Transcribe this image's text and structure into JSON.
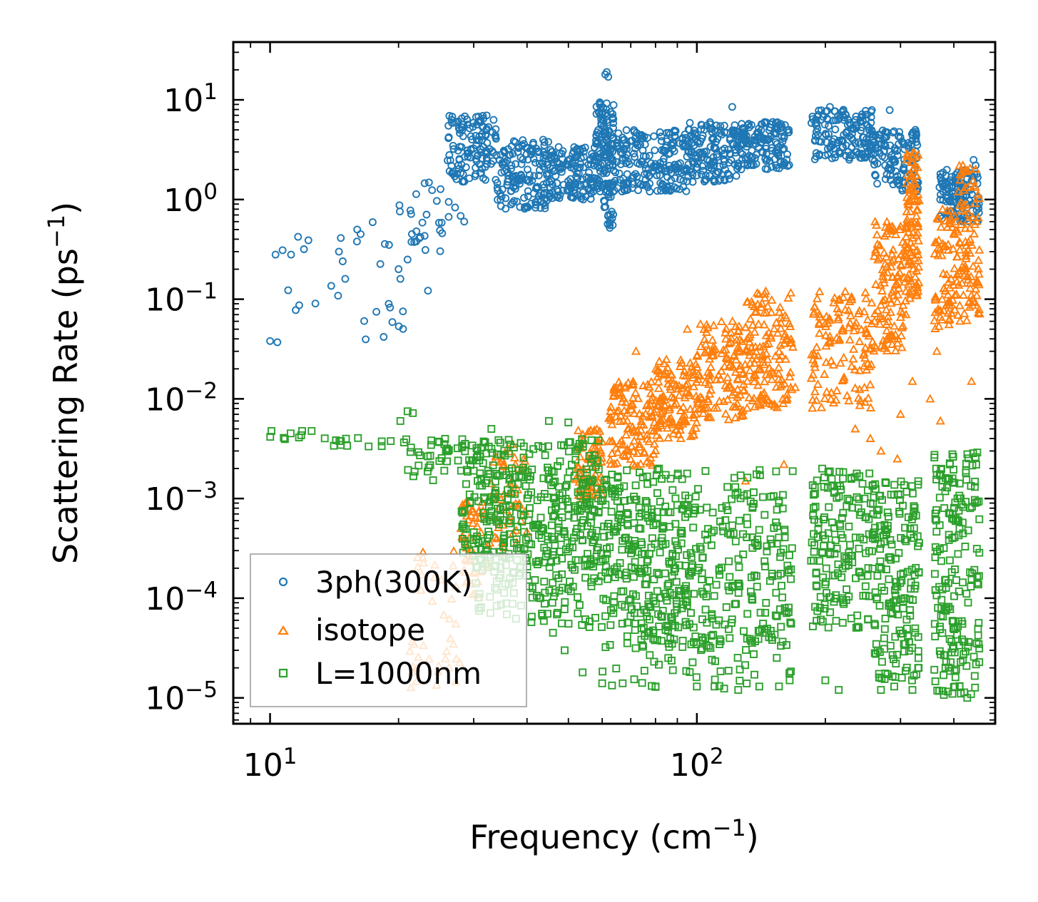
{
  "chart_data": {
    "type": "scatter",
    "title": "",
    "xlabel": {
      "main": "Frequency (cm",
      "sup": "−1",
      "close": ")"
    },
    "ylabel": {
      "main": "Scattering Rate (ps",
      "sup": "−1",
      "close": ")"
    },
    "xscale": "log",
    "yscale": "log",
    "xlim": [
      8.2,
      500
    ],
    "ylim": [
      5.5e-06,
      38
    ],
    "xticks": [
      {
        "value": 10,
        "base": "10",
        "exp": "1"
      },
      {
        "value": 100,
        "base": "10",
        "exp": "2"
      }
    ],
    "yticks": [
      {
        "value": 1e-05,
        "base": "10",
        "exp": "−5"
      },
      {
        "value": 0.0001,
        "base": "10",
        "exp": "−4"
      },
      {
        "value": 0.001,
        "base": "10",
        "exp": "−3"
      },
      {
        "value": 0.01,
        "base": "10",
        "exp": "−2"
      },
      {
        "value": 0.1,
        "base": "10",
        "exp": "−1"
      },
      {
        "value": 1,
        "base": "10",
        "exp": "0"
      },
      {
        "value": 10,
        "base": "10",
        "exp": "1"
      }
    ],
    "legend": {
      "position": "lower-left"
    },
    "series": [
      {
        "name": "3ph(300K)",
        "color": "#1f77b4",
        "marker": "circle",
        "bands": [
          [
            10.0,
            24.0,
            0.03,
            0.6,
            25
          ],
          [
            20.0,
            28.0,
            0.3,
            1.6,
            25
          ],
          [
            26.0,
            34.0,
            1.5,
            7.0,
            130
          ],
          [
            34.0,
            45.0,
            0.8,
            4.0,
            150
          ],
          [
            45.0,
            58.0,
            1.0,
            3.5,
            140
          ],
          [
            58.0,
            64.0,
            1.2,
            10.0,
            120
          ],
          [
            60.0,
            64.0,
            0.55,
            1.5,
            25
          ],
          [
            64.0,
            95.0,
            1.2,
            5.0,
            200
          ],
          [
            95.0,
            125.0,
            1.5,
            6.0,
            150
          ],
          [
            125.0,
            165.0,
            2.0,
            6.0,
            150
          ],
          [
            185.0,
            260.0,
            2.5,
            8.0,
            160
          ],
          [
            260.0,
            330.0,
            1.2,
            5.0,
            120
          ],
          [
            370.0,
            460.0,
            0.6,
            2.0,
            130
          ]
        ],
        "points": [
          [
            10.0,
            0.038
          ],
          [
            10.4,
            0.037
          ],
          [
            10.3,
            0.28
          ],
          [
            10.7,
            0.31
          ],
          [
            11.2,
            0.28
          ],
          [
            11.7,
            0.087
          ],
          [
            12.3,
            0.39
          ],
          [
            14.5,
            0.3
          ],
          [
            14.8,
            0.24
          ],
          [
            15.0,
            0.16
          ],
          [
            16.0,
            0.5
          ],
          [
            16.3,
            0.45
          ],
          [
            19.0,
            0.35
          ],
          [
            20.0,
            0.2
          ],
          [
            20.2,
            0.16
          ],
          [
            21.0,
            0.25
          ],
          [
            21.5,
            0.45
          ],
          [
            22.0,
            0.38
          ],
          [
            22.5,
            0.42
          ],
          [
            28.5,
            0.6
          ],
          [
            61.0,
            18.0
          ],
          [
            61.5,
            19.0
          ],
          [
            62.0,
            17.0
          ],
          [
            62.5,
            0.52
          ],
          [
            121.0,
            8.5
          ],
          [
            205.0,
            8.5
          ],
          [
            283.0,
            7.9
          ],
          [
            325.0,
            5.0
          ],
          [
            445.0,
            2.5
          ],
          [
            450.0,
            2.2
          ]
        ]
      },
      {
        "name": "isotope",
        "color": "#ff7f0e",
        "marker": "triangle",
        "bands": [
          [
            21.0,
            28.0,
            1.2e-05,
            0.0003,
            40
          ],
          [
            28.0,
            33.0,
            0.0001,
            0.001,
            50
          ],
          [
            33.0,
            40.0,
            0.0003,
            0.003,
            50
          ],
          [
            52.0,
            60.0,
            0.001,
            0.005,
            70
          ],
          [
            62.0,
            80.0,
            0.002,
            0.015,
            120
          ],
          [
            80.0,
            100.0,
            0.004,
            0.025,
            120
          ],
          [
            100.0,
            130.0,
            0.006,
            0.06,
            130
          ],
          [
            130.0,
            168.0,
            0.008,
            0.12,
            140
          ],
          [
            185.0,
            260.0,
            0.008,
            0.12,
            130
          ],
          [
            260.0,
            310.0,
            0.03,
            0.6,
            120
          ],
          [
            310.0,
            332.0,
            0.1,
            3.0,
            100
          ],
          [
            360.0,
            410.0,
            0.05,
            0.8,
            80
          ],
          [
            410.0,
            460.0,
            0.06,
            2.2,
            90
          ]
        ],
        "points": [
          [
            28.0,
            0.0005
          ],
          [
            36.0,
            0.0032
          ],
          [
            37.0,
            0.0035
          ],
          [
            72.0,
            0.03
          ],
          [
            95.0,
            0.05
          ],
          [
            145.0,
            0.12
          ],
          [
            170.0,
            0.013
          ],
          [
            235.0,
            0.005
          ],
          [
            255.0,
            0.004
          ],
          [
            270.0,
            0.003
          ],
          [
            295.0,
            0.0025
          ],
          [
            330.0,
            2.8
          ],
          [
            352.0,
            0.01
          ],
          [
            372.0,
            0.006
          ],
          [
            420.0,
            2.2
          ],
          [
            440.0,
            0.015
          ],
          [
            455.0,
            0.15
          ],
          [
            130.0,
            0.0015
          ],
          [
            160.0,
            0.0022
          ],
          [
            300.0,
            0.007
          ],
          [
            320.0,
            0.015
          ],
          [
            365.0,
            0.03
          ]
        ]
      },
      {
        "name": "L=1000nm",
        "color": "#2ca02c",
        "marker": "square",
        "bands": [
          [
            10.0,
            13.5,
            0.0039,
            0.0048,
            10
          ],
          [
            14.0,
            21.0,
            0.0033,
            0.0042,
            14
          ],
          [
            21.0,
            30.0,
            0.0015,
            0.004,
            40
          ],
          [
            28.0,
            60.0,
            0.0002,
            0.004,
            260
          ],
          [
            30.0,
            100.0,
            5e-05,
            0.002,
            340
          ],
          [
            60.0,
            168.0,
            3e-05,
            0.002,
            360
          ],
          [
            60.0,
            168.0,
            1.2e-05,
            5e-05,
            70
          ],
          [
            185.0,
            260.0,
            5e-05,
            0.002,
            170
          ],
          [
            260.0,
            332.0,
            1.5e-05,
            0.0015,
            170
          ],
          [
            360.0,
            460.0,
            1e-05,
            0.003,
            200
          ]
        ],
        "points": [
          [
            21.0,
            0.0075
          ],
          [
            21.6,
            0.0072
          ],
          [
            20.2,
            0.006
          ],
          [
            33.0,
            0.005
          ],
          [
            45.0,
            0.006
          ],
          [
            50.0,
            0.0058
          ],
          [
            52.0,
            0.003
          ],
          [
            43.0,
            0.0001
          ],
          [
            46.0,
            4.5e-05
          ],
          [
            49.0,
            3e-05
          ],
          [
            54.0,
            1.8e-05
          ],
          [
            60.0,
            1.4e-05
          ],
          [
            67.0,
            1.4e-05
          ],
          [
            80.0,
            1.3e-05
          ],
          [
            100.0,
            1.3e-05
          ],
          [
            110.0,
            1.3e-05
          ],
          [
            125.0,
            1.2e-05
          ],
          [
            140.0,
            1.3e-05
          ],
          [
            165.0,
            1.5e-05
          ],
          [
            200.0,
            1.5e-05
          ],
          [
            215.0,
            1.2e-05
          ],
          [
            270.0,
            1.2e-05
          ],
          [
            290.0,
            1.3e-05
          ],
          [
            320.0,
            1.2e-05
          ],
          [
            430.0,
            1e-05
          ]
        ]
      }
    ]
  }
}
